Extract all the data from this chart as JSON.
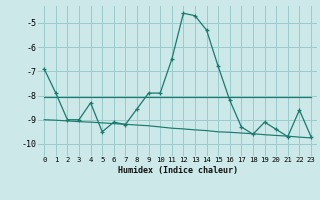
{
  "x": [
    0,
    1,
    2,
    3,
    4,
    5,
    6,
    7,
    8,
    9,
    10,
    11,
    12,
    13,
    14,
    15,
    16,
    17,
    18,
    19,
    20,
    21,
    22,
    23
  ],
  "y_main": [
    -6.9,
    -7.9,
    -9.0,
    -9.0,
    -8.3,
    -9.5,
    -9.1,
    -9.2,
    -8.55,
    -7.9,
    -7.9,
    -6.5,
    -4.6,
    -4.7,
    -5.3,
    -6.8,
    -8.2,
    -9.3,
    -9.6,
    -9.1,
    -9.4,
    -9.7,
    -8.6,
    -9.7
  ],
  "y_trend1": [
    -8.05,
    -8.05,
    -8.05,
    -8.05,
    -8.05,
    -8.05,
    -8.05,
    -8.05,
    -8.05,
    -8.05,
    -8.05,
    -8.05,
    -8.05,
    -8.05,
    -8.05,
    -8.05,
    -8.05,
    -8.05,
    -8.05,
    -8.05,
    -8.05,
    -8.05,
    -8.05,
    -8.05
  ],
  "y_trend2": [
    -9.0,
    -9.02,
    -9.05,
    -9.08,
    -9.1,
    -9.13,
    -9.16,
    -9.19,
    -9.22,
    -9.25,
    -9.3,
    -9.35,
    -9.38,
    -9.42,
    -9.45,
    -9.5,
    -9.52,
    -9.55,
    -9.58,
    -9.62,
    -9.65,
    -9.68,
    -9.72,
    -9.75
  ],
  "line_color": "#1a7a6e",
  "bg_color": "#cce8e8",
  "grid_color": "#99cccc",
  "xlabel": "Humidex (Indice chaleur)",
  "ylim": [
    -10.5,
    -4.3
  ],
  "xlim": [
    -0.5,
    23.5
  ],
  "yticks": [
    -10,
    -9,
    -8,
    -7,
    -6,
    -5
  ],
  "xticks": [
    0,
    1,
    2,
    3,
    4,
    5,
    6,
    7,
    8,
    9,
    10,
    11,
    12,
    13,
    14,
    15,
    16,
    17,
    18,
    19,
    20,
    21,
    22,
    23
  ],
  "xtick_labels": [
    "0",
    "1",
    "2",
    "3",
    "4",
    "5",
    "6",
    "7",
    "8",
    "9",
    "10",
    "11",
    "12",
    "13",
    "14",
    "15",
    "16",
    "17",
    "18",
    "19",
    "20",
    "21",
    "22",
    "23"
  ]
}
